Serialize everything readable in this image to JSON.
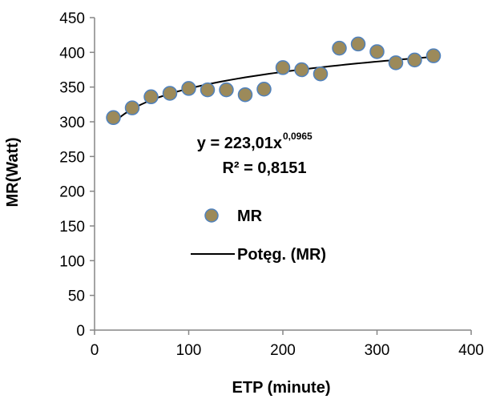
{
  "chart_data": {
    "type": "scatter",
    "xlabel": "ETP (minute)",
    "ylabel": "MR(Watt)",
    "xlim": [
      0,
      400
    ],
    "ylim": [
      0,
      450
    ],
    "xticks": [
      0,
      100,
      200,
      300,
      400
    ],
    "yticks": [
      0,
      50,
      100,
      150,
      200,
      250,
      300,
      350,
      400,
      450
    ],
    "grid": false,
    "legend_position": "left-middle",
    "series": [
      {
        "name": "MR",
        "kind": "points",
        "color": "#9C8A5A",
        "edge_color": "#4F81BD",
        "x": [
          20,
          40,
          60,
          80,
          100,
          120,
          140,
          160,
          180,
          200,
          220,
          240,
          260,
          280,
          300,
          320,
          340,
          360
        ],
        "y": [
          306,
          320,
          336,
          341,
          348,
          346,
          346,
          339,
          347,
          378,
          375,
          369,
          406,
          412,
          401,
          385,
          389,
          395
        ]
      },
      {
        "name": "Potęg. (MR)",
        "kind": "trendline",
        "color": "#000000",
        "model": "power",
        "a": 223.01,
        "b": 0.0965,
        "x_range": [
          20,
          360
        ]
      }
    ],
    "annotations": {
      "equation_base": "y = 223,01x",
      "equation_exp": "0,0965",
      "r_squared": "R² = 0,8151"
    }
  }
}
